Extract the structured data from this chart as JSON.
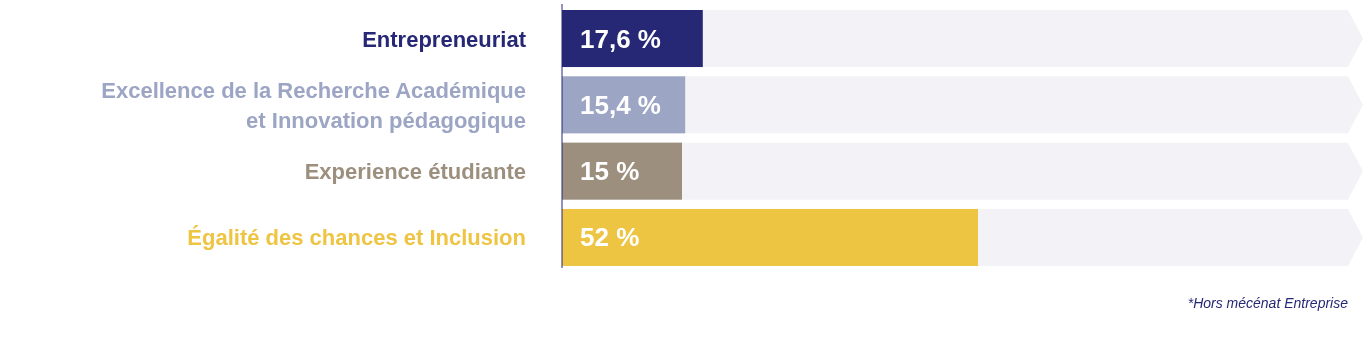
{
  "chart_data": {
    "type": "bar",
    "orientation": "horizontal",
    "categories": [
      "Entrepreneuriat",
      "Excellence de la Recherche Académique et Innovation pédagogique",
      "Experience étudiante",
      "Égalité des chances et Inclusion"
    ],
    "values": [
      17.6,
      15.4,
      15,
      52
    ],
    "colors": [
      "#262876",
      "#9ca5c4",
      "#9c8f7e",
      "#eec443"
    ],
    "value_labels": [
      "17,6 %",
      "15,4 %",
      "15 %",
      "52 %"
    ],
    "annotations": [
      "*Hors mécénat Entreprise"
    ]
  }
}
